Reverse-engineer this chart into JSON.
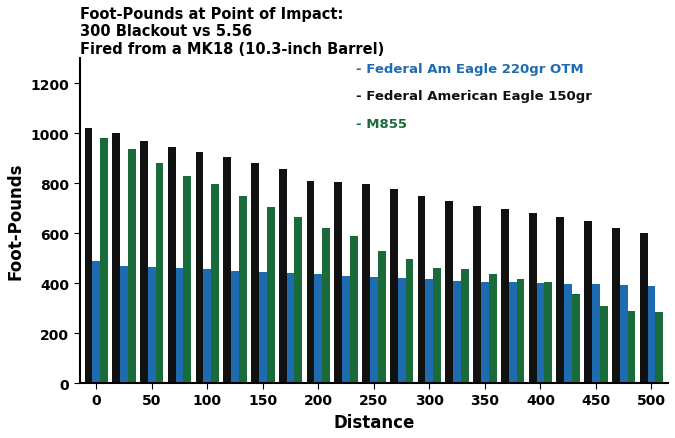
{
  "title": "Foot-Pounds at Point of Impact:\n300 Blackout vs 5.56\nFired from a MK18 (10.3-inch Barrel)",
  "xlabel": "Distance",
  "ylabel": "Foot-Pounds",
  "ylim": [
    0,
    1300
  ],
  "yticks": [
    0,
    200,
    400,
    600,
    800,
    1000,
    1200
  ],
  "distances": [
    0,
    25,
    50,
    75,
    100,
    125,
    150,
    175,
    200,
    225,
    250,
    275,
    300,
    325,
    350,
    375,
    400,
    425,
    450,
    475,
    500
  ],
  "xtick_positions": [
    0,
    2,
    4,
    6,
    8,
    10,
    12,
    14,
    16,
    18,
    20
  ],
  "xtick_labels": [
    "0",
    "50",
    "100",
    "150",
    "200",
    "250",
    "300",
    "350",
    "400",
    "450",
    "500"
  ],
  "series": [
    {
      "name": "Federal Am Eagle 220gr OTM",
      "color": "#1f6bb0",
      "values": [
        490,
        470,
        465,
        460,
        455,
        450,
        445,
        440,
        435,
        430,
        425,
        420,
        415,
        410,
        405,
        403,
        400,
        398,
        395,
        392,
        390
      ]
    },
    {
      "name": "Federal American Eagle 150gr",
      "color": "#111111",
      "values": [
        1020,
        1000,
        970,
        945,
        925,
        905,
        880,
        855,
        810,
        805,
        795,
        775,
        750,
        730,
        710,
        695,
        680,
        665,
        650,
        620,
        600
      ]
    },
    {
      "name": "M855",
      "color": "#1a6b3a",
      "values": [
        980,
        935,
        880,
        830,
        795,
        750,
        705,
        665,
        620,
        590,
        530,
        495,
        460,
        455,
        435,
        415,
        405,
        355,
        310,
        290,
        285
      ]
    }
  ],
  "legend": {
    "blue_label": "- Federal Am Eagle 220gr OTM",
    "black_label": "- Federal American Eagle 150gr",
    "green_label": "- M855",
    "blue_color": "#1f6bb0",
    "black_color": "#111111",
    "green_color": "#1a6b3a"
  },
  "background_color": "#ffffff",
  "bar_width": 0.28,
  "title_fontsize": 10.5,
  "axis_label_fontsize": 12,
  "tick_fontsize": 10
}
